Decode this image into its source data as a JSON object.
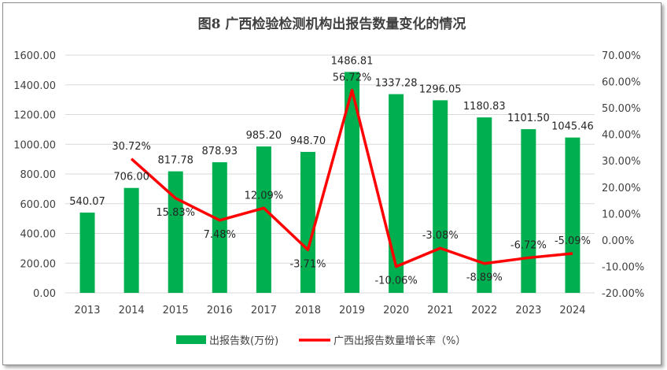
{
  "chart_data": {
    "type": "bar",
    "title": "图8  广西检验检测机构出报告数量变化的情况",
    "categories": [
      "2013",
      "2014",
      "2015",
      "2016",
      "2017",
      "2018",
      "2019",
      "2020",
      "2021",
      "2022",
      "2023",
      "2024"
    ],
    "series": [
      {
        "name": "出报告数(万份)",
        "type": "bar",
        "axis": "left",
        "color": "#00b050",
        "values": [
          540.07,
          706.0,
          817.78,
          878.93,
          985.2,
          948.7,
          1486.81,
          1337.28,
          1296.05,
          1180.83,
          1101.5,
          1045.46
        ],
        "labels": [
          "540.07",
          "706.00",
          "817.78",
          "878.93",
          "985.20",
          "948.70",
          "1486.81",
          "1337.28",
          "1296.05",
          "1180.83",
          "1101.50",
          "1045.46"
        ]
      },
      {
        "name": "广西出报告数量增长率（%）",
        "type": "line",
        "axis": "right",
        "color": "#ff0000",
        "values": [
          null,
          30.72,
          15.83,
          7.48,
          12.09,
          -3.71,
          56.72,
          -10.06,
          -3.08,
          -8.89,
          -6.72,
          -5.09
        ],
        "labels": [
          "",
          "30.72%",
          "15.83%",
          "7.48%",
          "12.09%",
          "-3.71%",
          "56.72%",
          "-10.06%",
          "-3.08%",
          "-8.89%",
          "-6.72%",
          "-5.09%"
        ]
      }
    ],
    "y_left": {
      "range": [
        0,
        1600
      ],
      "ticks": [
        0,
        200,
        400,
        600,
        800,
        1000,
        1200,
        1400,
        1600
      ],
      "tick_labels": [
        "0.00",
        "200.00",
        "400.00",
        "600.00",
        "800.00",
        "1000.00",
        "1200.00",
        "1400.00",
        "1600.00"
      ]
    },
    "y_right": {
      "range": [
        -20,
        70
      ],
      "ticks": [
        -20,
        -10,
        0,
        10,
        20,
        30,
        40,
        50,
        60,
        70
      ],
      "tick_labels": [
        "-20.00%",
        "-10.00%",
        "0.00%",
        "10.00%",
        "20.00%",
        "30.00%",
        "40.00%",
        "50.00%",
        "60.00%",
        "70.00%"
      ]
    },
    "grid": true,
    "legend": "bottom"
  }
}
